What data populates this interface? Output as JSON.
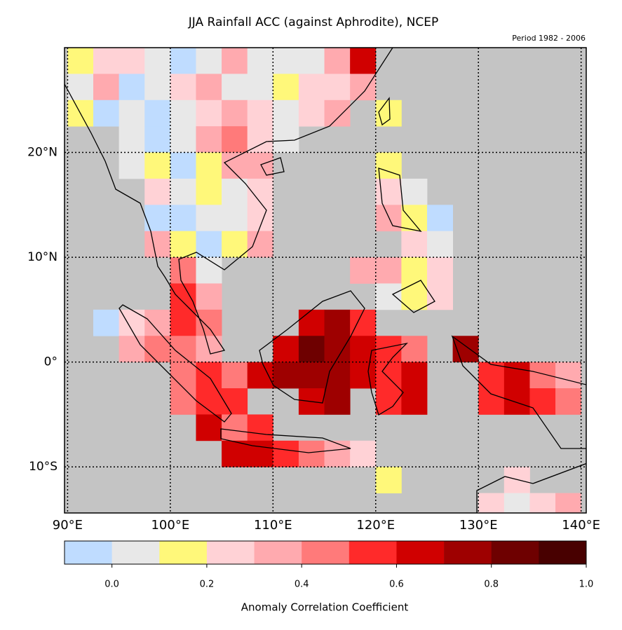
{
  "chart_data": {
    "type": "gridmap",
    "title": "JJA Rainfall ACC (against Aphrodite), NCEP",
    "subtitle": "Period 1982 - 2006",
    "colorbar_label": "Anomaly Correlation Coefficient",
    "xlim": [
      89.7,
      140.5
    ],
    "ylim": [
      -14.4,
      30
    ],
    "xticks": [
      {
        "value": 90,
        "label": "90°E"
      },
      {
        "value": 100,
        "label": "100°E"
      },
      {
        "value": 110,
        "label": "110°E"
      },
      {
        "value": 120,
        "label": "120°E"
      },
      {
        "value": 130,
        "label": "130°E"
      },
      {
        "value": 140,
        "label": "140°E"
      }
    ],
    "yticks": [
      {
        "value": -10,
        "label": "10°S"
      },
      {
        "value": 0,
        "label": "0°"
      },
      {
        "value": 10,
        "label": "10°N"
      },
      {
        "value": 20,
        "label": "20°N"
      }
    ],
    "grid": true,
    "lon_edges": [
      90,
      92.5,
      95,
      97.5,
      100,
      102.5,
      105,
      107.5,
      110,
      112.5,
      115,
      117.5,
      120,
      122.5,
      125,
      127.5,
      130,
      132.5,
      135,
      137.5,
      140
    ],
    "lat_edges": [
      30,
      27.5,
      25,
      22.5,
      20,
      17.5,
      15,
      12.5,
      10,
      7.5,
      5,
      2.5,
      0,
      -2.5,
      -5,
      -7.5,
      -10,
      -12.5,
      -15
    ],
    "values": [
      [
        0.1,
        0.2,
        0.25,
        0,
        -0.05,
        0,
        0.3,
        0.05,
        0,
        0.05,
        0.35,
        0.6,
        null,
        null,
        null,
        null,
        null,
        null,
        null,
        null
      ],
      [
        0,
        0.3,
        -0.05,
        0,
        0.2,
        0.35,
        0.05,
        0,
        0.1,
        0.2,
        0.25,
        0.3,
        null,
        null,
        null,
        null,
        null,
        null,
        null,
        null
      ],
      [
        0.15,
        -0.05,
        0,
        -0.05,
        0.05,
        0.25,
        0.3,
        0.2,
        0,
        0.25,
        0.35,
        null,
        0.15,
        null,
        null,
        null,
        null,
        null,
        null,
        null
      ],
      [
        null,
        null,
        0,
        -0.05,
        0,
        0.3,
        0.4,
        0.2,
        0.05,
        null,
        null,
        null,
        null,
        null,
        null,
        null,
        null,
        null,
        null,
        null
      ],
      [
        null,
        null,
        0.05,
        0.15,
        -0.05,
        0.1,
        0.35,
        0.3,
        null,
        null,
        null,
        null,
        0.15,
        null,
        null,
        null,
        null,
        null,
        null,
        null
      ],
      [
        null,
        null,
        null,
        0.25,
        0,
        0.15,
        0.05,
        0.2,
        null,
        null,
        null,
        null,
        0.2,
        0.05,
        null,
        null,
        null,
        null,
        null,
        null
      ],
      [
        null,
        null,
        null,
        -0.05,
        -0.05,
        0,
        0.05,
        0.25,
        null,
        null,
        null,
        null,
        0.3,
        0.1,
        -0.05,
        null,
        null,
        null,
        null,
        null
      ],
      [
        null,
        null,
        null,
        0.3,
        0.1,
        -0.05,
        0.1,
        0.35,
        null,
        null,
        null,
        null,
        null,
        0.25,
        0.05,
        null,
        null,
        null,
        null,
        null
      ],
      [
        null,
        null,
        null,
        null,
        0.4,
        0.05,
        null,
        null,
        null,
        null,
        null,
        0.3,
        0.3,
        0.1,
        0.2,
        null,
        null,
        null,
        null,
        null
      ],
      [
        null,
        null,
        null,
        null,
        0.5,
        0.35,
        null,
        null,
        null,
        null,
        null,
        null,
        0.05,
        0.15,
        0.2,
        null,
        null,
        null,
        null,
        null
      ],
      [
        null,
        -0.05,
        0.2,
        0.35,
        0.5,
        0.4,
        null,
        null,
        null,
        0.6,
        0.7,
        0.5,
        null,
        null,
        null,
        null,
        null,
        null,
        null,
        null
      ],
      [
        null,
        null,
        0.3,
        0.4,
        0.45,
        0.3,
        null,
        null,
        0.6,
        0.8,
        0.7,
        0.6,
        0.5,
        0.45,
        null,
        0.7,
        null,
        null,
        null,
        null
      ],
      [
        null,
        null,
        null,
        null,
        0.45,
        0.5,
        0.4,
        0.6,
        0.7,
        0.7,
        0.7,
        0.65,
        0.55,
        0.6,
        null,
        null,
        0.55,
        0.6,
        0.4,
        0.3
      ],
      [
        null,
        null,
        null,
        null,
        0.4,
        0.55,
        0.5,
        null,
        null,
        0.65,
        0.7,
        null,
        0.55,
        0.65,
        null,
        null,
        0.5,
        0.6,
        0.55,
        0.4
      ],
      [
        null,
        null,
        null,
        null,
        null,
        0.6,
        0.45,
        0.5,
        null,
        null,
        null,
        null,
        null,
        null,
        null,
        null,
        null,
        null,
        null,
        null
      ],
      [
        null,
        null,
        null,
        null,
        null,
        null,
        0.65,
        0.6,
        0.5,
        0.45,
        0.35,
        0.25,
        null,
        null,
        null,
        null,
        null,
        null,
        null,
        null
      ],
      [
        null,
        null,
        null,
        null,
        null,
        null,
        null,
        null,
        null,
        null,
        null,
        null,
        0.15,
        null,
        null,
        null,
        null,
        0.2,
        null,
        null
      ],
      [
        null,
        null,
        null,
        null,
        null,
        null,
        null,
        null,
        null,
        null,
        null,
        null,
        null,
        null,
        null,
        null,
        0.2,
        0.05,
        0.25,
        0.3
      ]
    ],
    "levels": [
      -0.1,
      0,
      0.1,
      0.2,
      0.3,
      0.4,
      0.5,
      0.6,
      0.7,
      0.8,
      0.9,
      1.0
    ],
    "colors": [
      "#bfdcff",
      "#e8e8e8",
      "#fff87a",
      "#ffd2d6",
      "#ffaaaf",
      "#ff7a7a",
      "#ff2a2a",
      "#d00000",
      "#9e0000",
      "#6e0000",
      "#480000"
    ],
    "colorbar_ticks": [
      {
        "value": 0,
        "label": "0.0"
      },
      {
        "value": 0.2,
        "label": "0.2"
      },
      {
        "value": 0.4,
        "label": "0.4"
      },
      {
        "value": 0.6,
        "label": "0.6"
      },
      {
        "value": 0.8,
        "label": "0.8"
      },
      {
        "value": 1.0,
        "label": "1.0"
      }
    ],
    "ocean_color": "#c4c4c4"
  }
}
